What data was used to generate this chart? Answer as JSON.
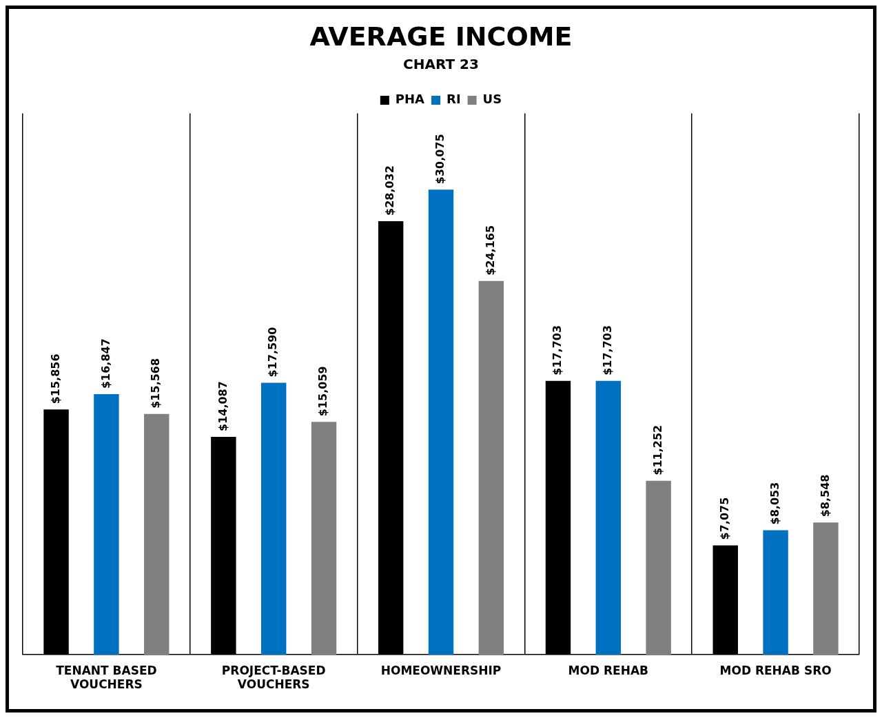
{
  "chart_data": {
    "type": "bar",
    "title": "AVERAGE INCOME",
    "subtitle": "CHART 23",
    "categories": [
      "TENANT BASED VOUCHERS",
      "PROJECT-BASED VOUCHERS",
      "HOMEOWNERSHIP",
      "MOD REHAB",
      "MOD REHAB SRO"
    ],
    "series": [
      {
        "name": "PHA",
        "color": "#000000",
        "values": [
          15856,
          14087,
          28032,
          17703,
          7075
        ],
        "value_labels": [
          "$15,856",
          "$14,087",
          "$28,032",
          "$17,703",
          "$7,075"
        ]
      },
      {
        "name": "RI",
        "color": "#0070c0",
        "values": [
          16847,
          17590,
          30075,
          17703,
          8053
        ],
        "value_labels": [
          "$16,847",
          "$17,590",
          "$30,075",
          "$17,703",
          "$8,053"
        ]
      },
      {
        "name": "US",
        "color": "#808080",
        "values": [
          15568,
          15059,
          24165,
          11252,
          8548
        ],
        "value_labels": [
          "$15,568",
          "$15,059",
          "$24,165",
          "$11,252",
          "$8,548"
        ]
      }
    ],
    "grid": "x",
    "legend": "top",
    "tick_labels": "x"
  }
}
